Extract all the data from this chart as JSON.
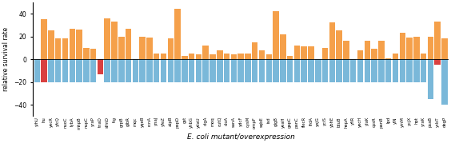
{
  "labels": [
    "yihU",
    "hu",
    "yecR",
    "yfcQ",
    "nuoC",
    "lybA",
    "mhpB",
    "nupC",
    "yraP",
    "tnaD",
    "sfmD",
    "tig",
    "grpB",
    "glbR",
    "mqc",
    "yqeB",
    "rcnA",
    "ynaJ",
    "yfeZ",
    "atpB",
    "pepD",
    "gst",
    "yhbG",
    "ydaU",
    "clgA",
    "moq",
    "cutQ",
    "cloA",
    "sanA",
    "ydcF",
    "cysM",
    "ompF",
    "sqbE",
    "isd",
    "glgB",
    "yeaH",
    "gapC",
    "panC",
    "flecR",
    "frdA",
    "yojG",
    "yciS",
    "ybhE",
    "btuB",
    "hepA",
    "yfiR",
    "yecH",
    "ylaK",
    "cpsR",
    "panB",
    "lpd",
    "yIN",
    "ymM",
    "ycjX",
    "hpt",
    "yraK",
    "psaB",
    "ycbT",
    "degP"
  ],
  "orange": [
    -5,
    35,
    25,
    18,
    18,
    27,
    26,
    10,
    9,
    0,
    36,
    33,
    20,
    27,
    0,
    20,
    19,
    5,
    5,
    18,
    44,
    3,
    5,
    4,
    12,
    4,
    8,
    5,
    4,
    5,
    5,
    15,
    8,
    4,
    42,
    22,
    3,
    12,
    11,
    11,
    0,
    10,
    32,
    25,
    16,
    0,
    8,
    16,
    9,
    16,
    1,
    5,
    23,
    19,
    20,
    5,
    20,
    33,
    18
  ],
  "blue": [
    -20,
    -20,
    -20,
    -20,
    -20,
    -20,
    -20,
    -20,
    -20,
    -13,
    -20,
    -20,
    -20,
    -20,
    -20,
    -20,
    -20,
    -20,
    -20,
    -20,
    -20,
    -20,
    -20,
    -20,
    -20,
    -20,
    -20,
    -20,
    -20,
    -20,
    -20,
    -20,
    -20,
    -20,
    -20,
    -20,
    -20,
    -20,
    -20,
    -20,
    -20,
    -20,
    -20,
    -20,
    -20,
    -20,
    -20,
    -20,
    -20,
    -20,
    -20,
    -20,
    -20,
    -20,
    -20,
    -20,
    -35,
    -5,
    -40
  ],
  "orange_color": "#f5a04a",
  "blue_color": "#7ab8d9",
  "red_color": "#d94040",
  "red_indices": [
    1,
    9,
    57
  ],
  "xlabel": "E. coli mutant/overexpression",
  "ylabel": "relative survival rate",
  "ylim": [
    -50,
    50
  ],
  "yticks": [
    -40,
    -20,
    0,
    20,
    40
  ],
  "figsize": [
    5.64,
    1.79
  ],
  "dpi": 100
}
